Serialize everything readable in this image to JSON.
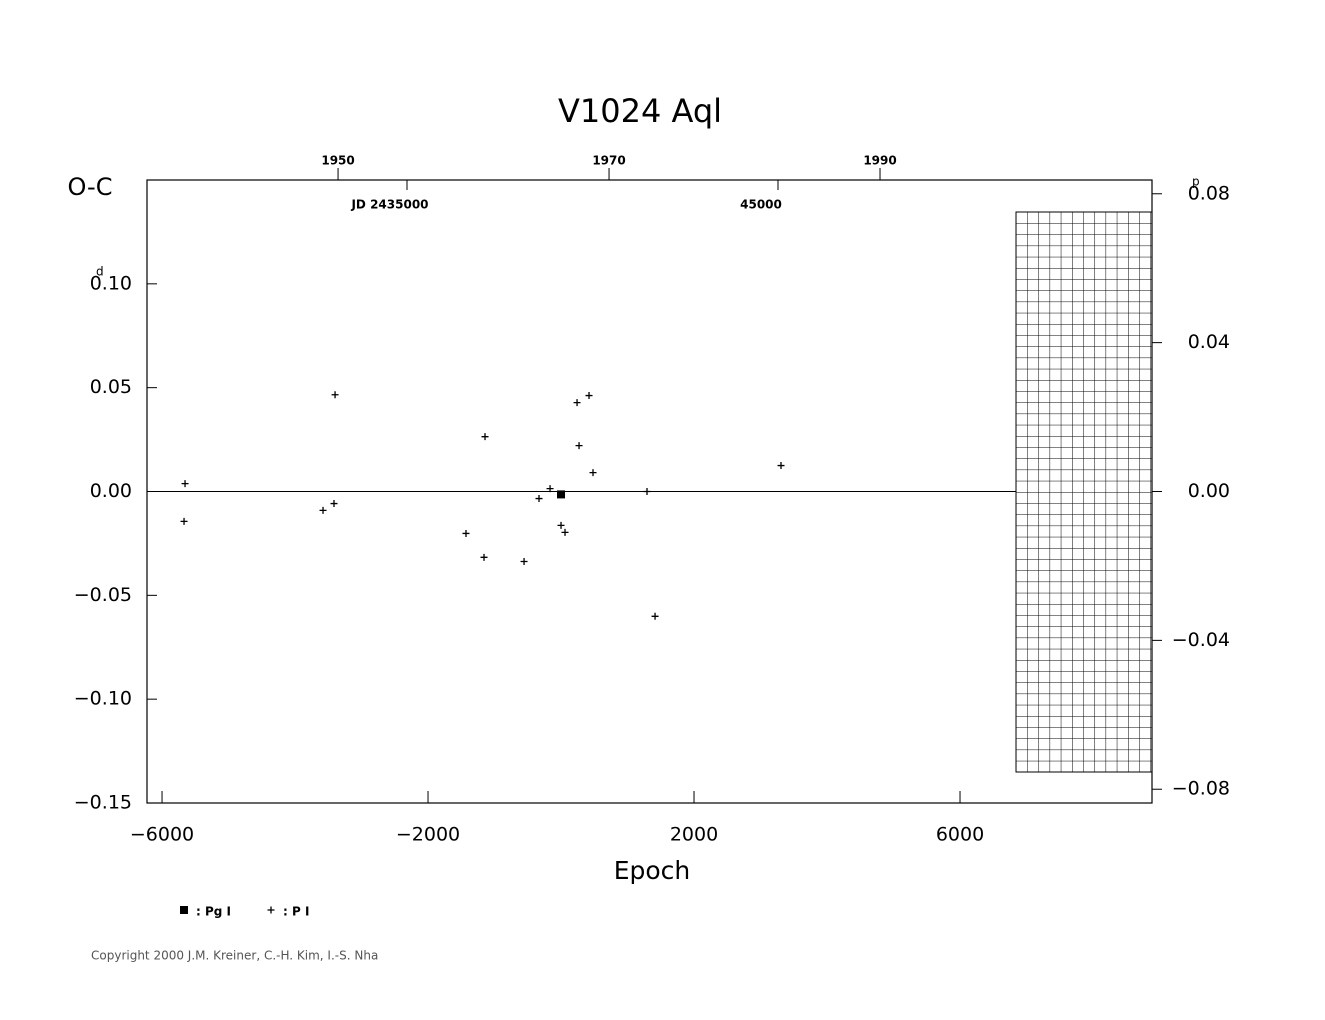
{
  "chart_data": {
    "type": "scatter",
    "title": "V1024 Aql",
    "y_label": "O-C",
    "x_label": "Epoch",
    "y_unit": "d",
    "y2_unit": "p",
    "xlim": [
      -6226,
      8887
    ],
    "xticks": [
      {
        "value": -6000,
        "label": "−6000"
      },
      {
        "value": -2000,
        "label": "−2000"
      },
      2000,
      6000
    ],
    "ylim": [
      -0.15,
      0.15
    ],
    "yticks": [
      {
        "value": 0.1,
        "label": "0.10"
      },
      0.05,
      {
        "value": 0,
        "label": "0.00"
      },
      {
        "value": -0.05,
        "label": "−0.05"
      },
      {
        "value": -0.1,
        "label": "−0.10"
      },
      {
        "value": -0.15,
        "label": "−0.15"
      }
    ],
    "y2lim": [
      -0.0837,
      0.0837
    ],
    "y2ticks": [
      {
        "value": 0.08,
        "label": "0.08"
      },
      0.04,
      {
        "value": 0,
        "label": "0.00"
      },
      {
        "value": -0.04,
        "label": "−0.04"
      },
      {
        "value": -0.08,
        "label": "−0.08"
      }
    ],
    "x2ticks": [
      {
        "value": -3353,
        "label": "1950"
      },
      {
        "value": 722,
        "label": "1970"
      },
      {
        "value": 4797,
        "label": "1990"
      }
    ],
    "jd_ticks": [
      {
        "value": -2316,
        "label": "JD 2435000"
      },
      {
        "value": 3263,
        "label": "45000"
      }
    ],
    "series": [
      {
        "name": ": Pg I",
        "marker": "square",
        "color": "#000000",
        "x": [
          0
        ],
        "values": [
          -0.0014
        ]
      },
      {
        "name": ": P I",
        "marker": "plus",
        "color": "#000000",
        "x": [
          -5654,
          -5669,
          -3398,
          -3414,
          -3579,
          -1143,
          -1429,
          -1158,
          -556,
          -331,
          -165,
          0,
          60,
          241,
          421,
          271,
          481,
          1293,
          1414,
          3308
        ],
        "values": [
          0.0038,
          -0.0144,
          0.0466,
          -0.0058,
          -0.0091,
          0.0264,
          -0.0202,
          -0.0317,
          -0.0337,
          -0.0034,
          0.0014,
          -0.0163,
          -0.0197,
          0.0428,
          0.0462,
          0.0221,
          0.0091,
          0.0,
          -0.0601,
          0.0125
        ]
      }
    ],
    "copyright": "Copyright 2000 J.M. Kreiner, C.-H. Kim, I.-S. Nha"
  }
}
